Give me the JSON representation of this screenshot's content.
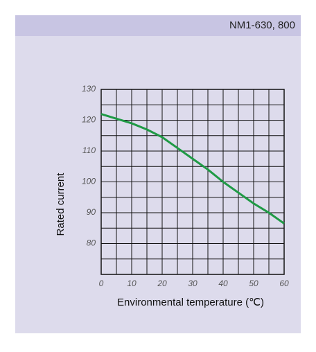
{
  "header": {
    "title": "NM1-630, 800"
  },
  "chart_data": {
    "type": "line",
    "x": [
      0,
      5,
      10,
      15,
      20,
      25,
      30,
      35,
      40,
      45,
      50,
      55,
      60
    ],
    "series": [
      {
        "name": null,
        "color": "#1f9a45",
        "values": [
          122,
          120.5,
          119,
          117,
          114.5,
          111,
          107.5,
          104,
          100,
          96.5,
          93,
          90,
          86.5
        ]
      }
    ],
    "xlabel": "Environmental temperature (℃)",
    "ylabel": "Rated current",
    "xlim": [
      0,
      60
    ],
    "xticks": [
      0,
      10,
      20,
      30,
      40,
      50,
      60
    ],
    "ylim": [
      70,
      130
    ],
    "yticks": [
      80,
      90,
      100,
      110,
      120,
      130
    ],
    "xgrid": [
      0,
      5,
      10,
      15,
      20,
      25,
      30,
      35,
      40,
      45,
      50,
      55,
      60
    ],
    "ygrid": [
      70,
      75,
      80,
      85,
      90,
      95,
      100,
      105,
      110,
      115,
      120,
      125,
      130
    ],
    "grid": true
  }
}
